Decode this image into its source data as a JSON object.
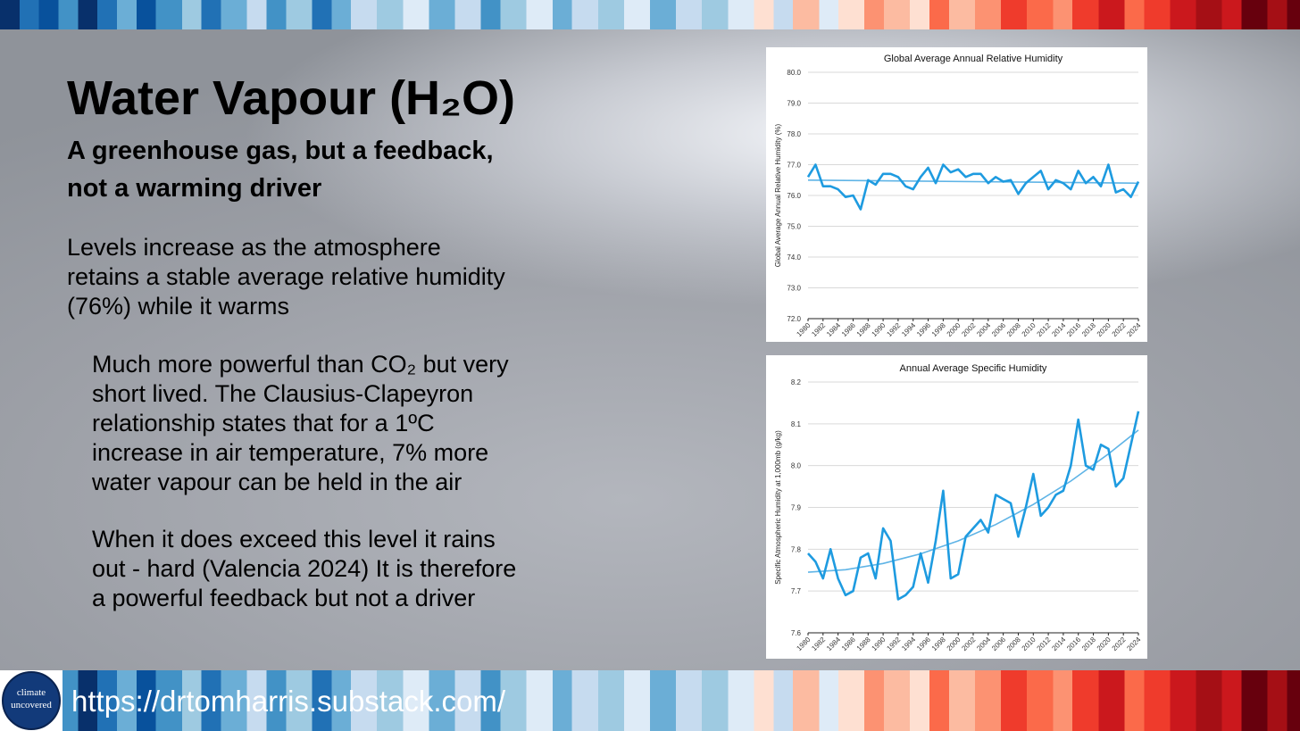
{
  "slide": {
    "title": "Water Vapour (H₂O)",
    "subtitle": [
      "A greenhouse gas, but a feedback,",
      "not a warming driver"
    ],
    "paragraph1": [
      "Levels increase as the atmosphere",
      "retains a stable average relative humidity",
      "(76%) while it warms"
    ],
    "paragraph2": [
      "Much more powerful than CO₂ but very",
      "short lived. The Clausius-Clapeyron",
      "relationship states that for a 1ºC",
      "increase in air temperature, 7% more",
      "water vapour can be held in the air"
    ],
    "paragraph3": [
      "When it does exceed this level it rains",
      "out - hard (Valencia 2024) It is therefore",
      "a powerful feedback but not a driver"
    ],
    "logo": [
      "climate",
      "uncovered"
    ],
    "url": "https://drtomharris.substack.com/"
  },
  "chart_data": [
    {
      "type": "line",
      "title": "Global Average Annual Relative Humidity",
      "y_label": "Global Average Annual Relative Humidity (%)",
      "x": [
        1980,
        1981,
        1982,
        1983,
        1984,
        1985,
        1986,
        1987,
        1988,
        1989,
        1990,
        1991,
        1992,
        1993,
        1994,
        1995,
        1996,
        1997,
        1998,
        1999,
        2000,
        2001,
        2002,
        2003,
        2004,
        2005,
        2006,
        2007,
        2008,
        2009,
        2010,
        2011,
        2012,
        2013,
        2014,
        2015,
        2016,
        2017,
        2018,
        2019,
        2020,
        2021,
        2022,
        2023,
        2024
      ],
      "values": [
        76.6,
        77.0,
        76.3,
        76.3,
        76.2,
        75.95,
        76.0,
        75.55,
        76.5,
        76.35,
        76.7,
        76.7,
        76.6,
        76.3,
        76.2,
        76.6,
        76.9,
        76.4,
        77.0,
        76.75,
        76.85,
        76.6,
        76.7,
        76.7,
        76.4,
        76.6,
        76.45,
        76.5,
        76.05,
        76.4,
        76.6,
        76.8,
        76.2,
        76.5,
        76.4,
        76.2,
        76.8,
        76.4,
        76.6,
        76.3,
        77.0,
        76.1,
        76.2,
        75.95,
        76.45
      ],
      "color": "#1e9be0",
      "trend_x": [
        1980,
        2024
      ],
      "trend_values": [
        76.5,
        76.4
      ],
      "trend_color": "#5fb4e6",
      "xlim": [
        1980,
        2024
      ],
      "ylim": [
        72,
        80
      ],
      "xticks": [
        1980,
        1982,
        1984,
        1986,
        1988,
        1990,
        1992,
        1994,
        1996,
        1998,
        2000,
        2002,
        2004,
        2006,
        2008,
        2010,
        2012,
        2014,
        2016,
        2018,
        2020,
        2022,
        2024
      ],
      "yticks": [
        {
          "value": 72,
          "label": "72.0"
        },
        {
          "value": 73,
          "label": "73.0"
        },
        {
          "value": 74,
          "label": "74.0"
        },
        {
          "value": 75,
          "label": "75.0"
        },
        {
          "value": 76,
          "label": "76.0"
        },
        {
          "value": 77,
          "label": "77.0"
        },
        {
          "value": 78,
          "label": "78.0"
        },
        {
          "value": 79,
          "label": "79.0"
        },
        {
          "value": 80,
          "label": "80.0"
        }
      ],
      "grid": true
    },
    {
      "type": "line",
      "title": "Annual Average Specific Humidity",
      "y_label": "Specific Atmospheric Humidity at 1,000mb (g/kg)",
      "x": [
        1980,
        1981,
        1982,
        1983,
        1984,
        1985,
        1986,
        1987,
        1988,
        1989,
        1990,
        1991,
        1992,
        1993,
        1994,
        1995,
        1996,
        1997,
        1998,
        1999,
        2000,
        2001,
        2002,
        2003,
        2004,
        2005,
        2006,
        2007,
        2008,
        2009,
        2010,
        2011,
        2012,
        2013,
        2014,
        2015,
        2016,
        2017,
        2018,
        2019,
        2020,
        2021,
        2022,
        2023,
        2024
      ],
      "values": [
        7.79,
        7.77,
        7.73,
        7.8,
        7.73,
        7.69,
        7.7,
        7.78,
        7.79,
        7.73,
        7.85,
        7.82,
        7.68,
        7.69,
        7.71,
        7.79,
        7.72,
        7.82,
        7.94,
        7.73,
        7.74,
        7.83,
        7.85,
        7.87,
        7.84,
        7.93,
        7.92,
        7.91,
        7.83,
        7.9,
        7.98,
        7.88,
        7.9,
        7.93,
        7.94,
        8.0,
        8.11,
        8.0,
        7.99,
        8.05,
        8.04,
        7.95,
        7.97,
        8.05,
        8.13
      ],
      "color": "#1e9be0",
      "trend_x": [
        1980,
        1985,
        1990,
        1995,
        2000,
        2005,
        2010,
        2015,
        2020,
        2024
      ],
      "trend_values": [
        7.745,
        7.751,
        7.766,
        7.789,
        7.82,
        7.859,
        7.907,
        7.963,
        8.028,
        8.085
      ],
      "trend_color": "#5fb4e6",
      "xlim": [
        1980,
        2024
      ],
      "ylim": [
        7.6,
        8.2
      ],
      "xticks": [
        1980,
        1982,
        1984,
        1986,
        1988,
        1990,
        1992,
        1994,
        1996,
        1998,
        2000,
        2002,
        2004,
        2006,
        2008,
        2010,
        2012,
        2014,
        2016,
        2018,
        2020,
        2022,
        2024
      ],
      "yticks": [
        7.6,
        7.7,
        7.8,
        7.9,
        {
          "value": 8.0,
          "label": "8.0"
        },
        8.1,
        8.2
      ],
      "grid": true
    }
  ]
}
